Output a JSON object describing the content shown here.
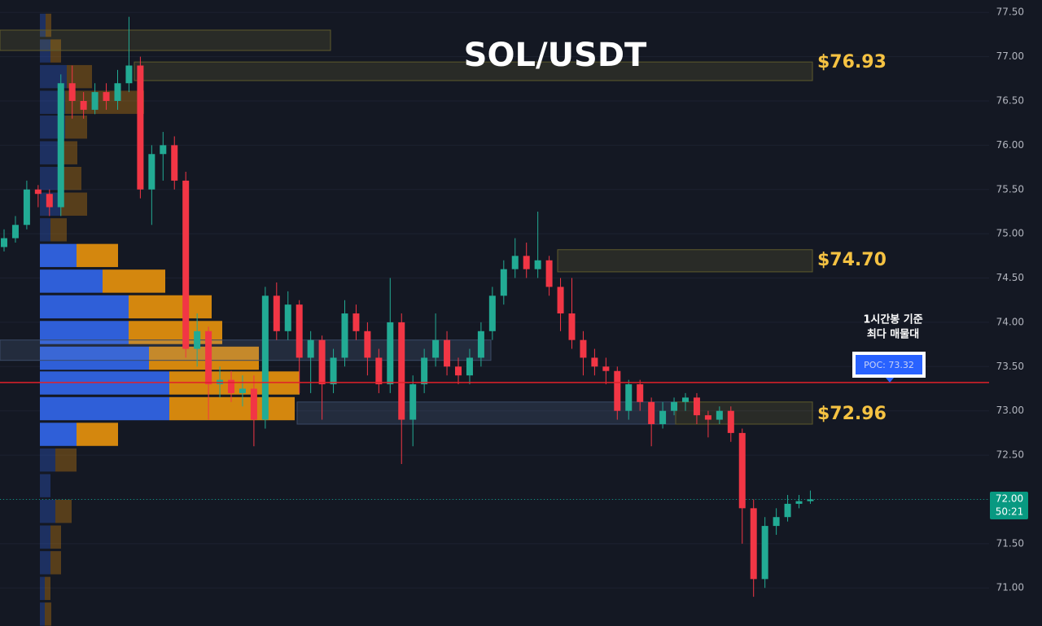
{
  "chart_data": {
    "type": "candlestick",
    "title": "SOL/USDT",
    "up_color": "#22ab94",
    "down_color": "#f23645",
    "open": [
      74.85,
      74.95,
      75.1,
      75.5,
      75.45,
      75.3,
      76.7,
      76.5,
      76.4,
      76.6,
      76.5,
      76.7,
      76.9,
      75.5,
      75.9,
      76.0,
      75.6,
      73.7,
      73.9,
      73.3,
      73.35,
      73.2,
      73.25,
      72.9,
      74.3,
      73.9,
      74.2,
      73.6,
      73.8,
      73.3,
      73.6,
      74.1,
      73.9,
      73.6,
      73.3,
      74.0,
      72.9,
      73.3,
      73.6,
      73.8,
      73.5,
      73.4,
      73.6,
      73.9,
      74.3,
      74.6,
      74.75,
      74.6,
      74.7,
      74.4,
      74.1,
      73.8,
      73.6,
      73.5,
      73.45,
      73.0,
      73.3,
      73.1,
      72.85,
      73.0,
      73.1,
      73.15,
      72.95,
      72.9,
      73.0,
      72.75,
      71.9,
      71.1,
      71.7,
      71.8,
      71.95,
      71.98
    ],
    "high": [
      75.05,
      75.2,
      75.6,
      75.55,
      75.5,
      76.8,
      76.9,
      76.6,
      76.7,
      76.7,
      76.85,
      77.45,
      77.0,
      76.0,
      76.15,
      76.1,
      75.7,
      74.1,
      73.95,
      73.5,
      73.45,
      73.4,
      73.4,
      74.4,
      74.45,
      74.35,
      74.25,
      73.9,
      73.85,
      73.7,
      74.25,
      74.2,
      74.0,
      73.7,
      74.5,
      74.1,
      73.4,
      73.7,
      74.1,
      73.9,
      73.6,
      73.7,
      74.0,
      74.4,
      74.7,
      74.95,
      74.9,
      75.25,
      74.75,
      74.5,
      74.5,
      73.9,
      73.7,
      73.6,
      73.5,
      73.35,
      73.35,
      73.15,
      73.1,
      73.15,
      73.2,
      73.2,
      73.0,
      73.05,
      73.05,
      72.8,
      72.0,
      71.8,
      71.9,
      72.05,
      72.05,
      72.1
    ],
    "low": [
      74.8,
      74.9,
      75.05,
      75.3,
      75.2,
      75.2,
      76.3,
      76.3,
      76.35,
      76.4,
      76.4,
      76.6,
      75.4,
      75.1,
      75.6,
      75.5,
      73.6,
      73.5,
      72.9,
      73.15,
      73.1,
      73.05,
      72.6,
      72.8,
      73.8,
      73.8,
      73.2,
      73.2,
      72.9,
      73.2,
      73.5,
      73.8,
      73.4,
      73.2,
      73.2,
      72.4,
      72.6,
      73.2,
      73.5,
      73.4,
      73.3,
      73.3,
      73.5,
      73.8,
      74.2,
      74.5,
      74.5,
      74.5,
      74.3,
      73.9,
      73.7,
      73.4,
      73.4,
      73.3,
      72.9,
      72.9,
      73.0,
      72.6,
      72.8,
      72.95,
      73.0,
      72.85,
      72.7,
      72.85,
      72.65,
      71.5,
      70.9,
      71.0,
      71.6,
      71.75,
      71.9,
      71.95
    ],
    "close": [
      74.95,
      75.1,
      75.5,
      75.45,
      75.3,
      76.7,
      76.5,
      76.4,
      76.6,
      76.5,
      76.7,
      76.9,
      75.5,
      75.9,
      76.0,
      75.6,
      73.7,
      73.9,
      73.3,
      73.35,
      73.2,
      73.25,
      72.9,
      74.3,
      73.9,
      74.2,
      73.6,
      73.8,
      73.3,
      73.6,
      74.1,
      73.9,
      73.6,
      73.3,
      74.0,
      72.9,
      73.3,
      73.6,
      73.8,
      73.5,
      73.4,
      73.6,
      73.9,
      74.3,
      74.6,
      74.75,
      74.6,
      74.7,
      74.4,
      74.1,
      73.8,
      73.6,
      73.5,
      73.45,
      73.0,
      73.3,
      73.1,
      72.85,
      73.0,
      73.1,
      73.15,
      72.95,
      72.9,
      73.0,
      72.75,
      71.9,
      71.1,
      71.7,
      71.8,
      71.95,
      71.98,
      72.0
    ],
    "ylim": [
      70.57,
      77.64
    ],
    "yticks": [
      {
        "value": 71.0,
        "label": "71.00"
      },
      {
        "value": 71.5,
        "label": "71.50"
      },
      {
        "value": 72.0,
        "label": "72.00"
      },
      {
        "value": 72.5,
        "label": "72.50"
      },
      {
        "value": 73.0,
        "label": "73.00"
      },
      {
        "value": 73.5,
        "label": "73.50"
      },
      {
        "value": 74.0,
        "label": "74.00"
      },
      {
        "value": 74.5,
        "label": "74.50"
      },
      {
        "value": 75.0,
        "label": "75.00"
      },
      {
        "value": 75.5,
        "label": "75.50"
      },
      {
        "value": 76.0,
        "label": "76.00"
      },
      {
        "value": 76.5,
        "label": "76.50"
      },
      {
        "value": 77.0,
        "label": "77.00"
      },
      {
        "value": 77.5,
        "label": "77.50"
      }
    ],
    "grid": true,
    "zones": [
      {
        "low": 77.07,
        "high": 77.3
      },
      {
        "value": 76.93,
        "label": "$76.93",
        "low": 76.73,
        "high": 76.94
      },
      {
        "value": 74.7,
        "label": "$74.70",
        "low": 74.57,
        "high": 74.82
      },
      {
        "low": 73.57,
        "high": 73.8
      },
      {
        "value": 72.96,
        "label": "$72.96",
        "low": 72.85,
        "high": 73.1
      }
    ],
    "poc": {
      "value": 73.32,
      "label": "POC: 73.32",
      "color": "#e0202a"
    },
    "annotation": [
      "1시간봉 기준",
      "최다 매물대"
    ],
    "last_price": {
      "value": 72.0,
      "label": "72.00"
    },
    "countdown": "50:21",
    "volume_profile": {
      "row_size": 0.289,
      "value_area": [
        72.59,
        74.9
      ],
      "buy_color": "#2f5fd8",
      "sell_color": "#d4870e",
      "rows": [
        {
          "low": 77.21,
          "buy": 7,
          "sell": 7
        },
        {
          "low": 76.92,
          "buy": 13,
          "sell": 13
        },
        {
          "low": 76.63,
          "buy": 33,
          "sell": 31
        },
        {
          "low": 76.34,
          "buy": 31,
          "sell": 97
        },
        {
          "low": 76.06,
          "buy": 31,
          "sell": 27
        },
        {
          "low": 75.77,
          "buy": 25,
          "sell": 21
        },
        {
          "low": 75.48,
          "buy": 25,
          "sell": 26
        },
        {
          "low": 75.19,
          "buy": 25,
          "sell": 33
        },
        {
          "low": 74.9,
          "buy": 13,
          "sell": 20
        },
        {
          "low": 74.61,
          "buy": 45,
          "sell": 51
        },
        {
          "low": 74.32,
          "buy": 77,
          "sell": 77
        },
        {
          "low": 74.03,
          "buy": 109,
          "sell": 102
        },
        {
          "low": 73.74,
          "buy": 109,
          "sell": 115
        },
        {
          "low": 73.45,
          "buy": 134,
          "sell": 135
        },
        {
          "low": 73.17,
          "buy": 159,
          "sell": 160
        },
        {
          "low": 72.88,
          "buy": 159,
          "sell": 154
        },
        {
          "low": 72.59,
          "buy": 45,
          "sell": 51
        },
        {
          "low": 72.3,
          "buy": 19,
          "sell": 26
        },
        {
          "low": 72.01,
          "buy": 13,
          "sell": 0
        },
        {
          "low": 71.72,
          "buy": 19,
          "sell": 20
        },
        {
          "low": 71.43,
          "buy": 13,
          "sell": 13
        },
        {
          "low": 71.14,
          "buy": 13,
          "sell": 13
        },
        {
          "low": 70.85,
          "buy": 6,
          "sell": 7
        },
        {
          "low": 70.56,
          "buy": 6,
          "sell": 8
        }
      ]
    }
  }
}
